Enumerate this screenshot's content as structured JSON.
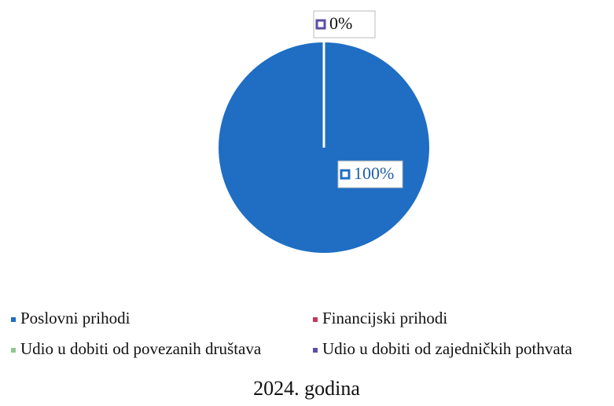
{
  "chart_data": {
    "type": "pie",
    "title": "2024. godina",
    "categories": [
      "Poslovni prihodi",
      "Financijski prihodi",
      "Udio u dobiti od povezanih društava",
      "Udio u dobiti od zajedničkih pothvata"
    ],
    "values": [
      100,
      0,
      0,
      0
    ],
    "value_labels": [
      "100%",
      null,
      null,
      "0%"
    ],
    "colors": [
      "#1f6ec4",
      "#c4375c",
      "#8fc88f",
      "#5a4ea6"
    ]
  }
}
